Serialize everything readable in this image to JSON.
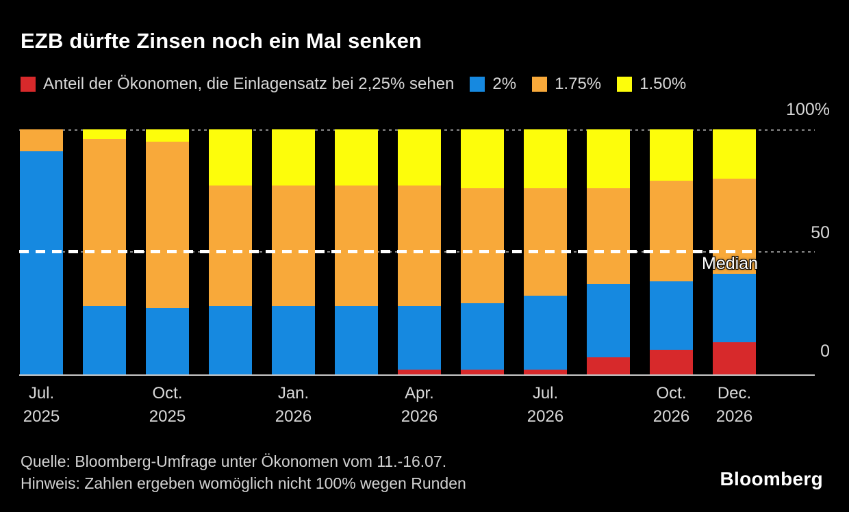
{
  "title": "EZB dürfte Zinsen noch ein Mal senken",
  "legend": {
    "series_label": "Anteil der Ökonomen, die Einlagensatz bei 2,25% sehen",
    "series_swatch_color": "#d7292b",
    "items": [
      {
        "label": "2%",
        "color": "#1689e0"
      },
      {
        "label": "1.75%",
        "color": "#f8a93a"
      },
      {
        "label": "1.50%",
        "color": "#fdfd0b"
      }
    ]
  },
  "chart_data": {
    "type": "bar",
    "stacked": true,
    "title": "EZB dürfte Zinsen noch ein Mal senken",
    "ylim": [
      0,
      100
    ],
    "yticks": [
      "100%",
      "50",
      "0"
    ],
    "grid": "horizontal dotted gridlines at 50 and 100",
    "legend_position": "top",
    "median_label": "Median",
    "median_value": 50,
    "categories": [
      "Jul. 2025",
      "",
      "Oct. 2025",
      "",
      "Jan. 2026",
      "",
      "Apr. 2026",
      "",
      "Jul. 2026",
      "",
      "Oct. 2026",
      "Dec. 2026"
    ],
    "xticks": [
      {
        "month": "Jul.",
        "year": "2025",
        "bar": 0
      },
      {
        "month": "Oct.",
        "year": "2025",
        "bar": 2
      },
      {
        "month": "Jan.",
        "year": "2026",
        "bar": 4
      },
      {
        "month": "Apr.",
        "year": "2026",
        "bar": 6
      },
      {
        "month": "Jul.",
        "year": "2026",
        "bar": 8
      },
      {
        "month": "Oct.",
        "year": "2026",
        "bar": 10
      },
      {
        "month": "Dec.",
        "year": "2026",
        "bar": 11
      }
    ],
    "series": [
      {
        "name": "2,25%",
        "key": "2-25",
        "color": "#d7292b",
        "values": [
          0,
          0,
          0,
          0,
          0,
          0,
          2,
          2,
          2,
          7,
          10,
          13
        ]
      },
      {
        "name": "2%",
        "key": "2-00",
        "color": "#1689e0",
        "values": [
          91,
          28,
          27,
          28,
          28,
          28,
          26,
          27,
          30,
          30,
          28,
          28
        ]
      },
      {
        "name": "1.75%",
        "key": "1-75",
        "color": "#f8a93a",
        "values": [
          9,
          68,
          68,
          49,
          49,
          49,
          49,
          47,
          44,
          39,
          41,
          39
        ]
      },
      {
        "name": "1.50%",
        "key": "1-50",
        "color": "#fdfd0b",
        "values": [
          0,
          4,
          5,
          23,
          23,
          23,
          23,
          23,
          24,
          24,
          20,
          20
        ]
      }
    ],
    "stack_order_bottom_to_top": [
      "2,25%",
      "2%",
      "1.75%",
      "1.50%"
    ]
  },
  "footer": {
    "source": "Quelle: Bloomberg-Umfrage unter Ökonomen vom 11.-16.07.",
    "note": "Hinweis: Zahlen ergeben womöglich nicht 100% wegen Runden"
  },
  "brand": "Bloomberg",
  "colors": {
    "background": "#000000",
    "text_primary": "#ffffff",
    "text_secondary": "#d6d6d6",
    "gridline": "#8a8a8a",
    "axis_line": "#c9c9c9",
    "median_line": "#ffffff"
  }
}
